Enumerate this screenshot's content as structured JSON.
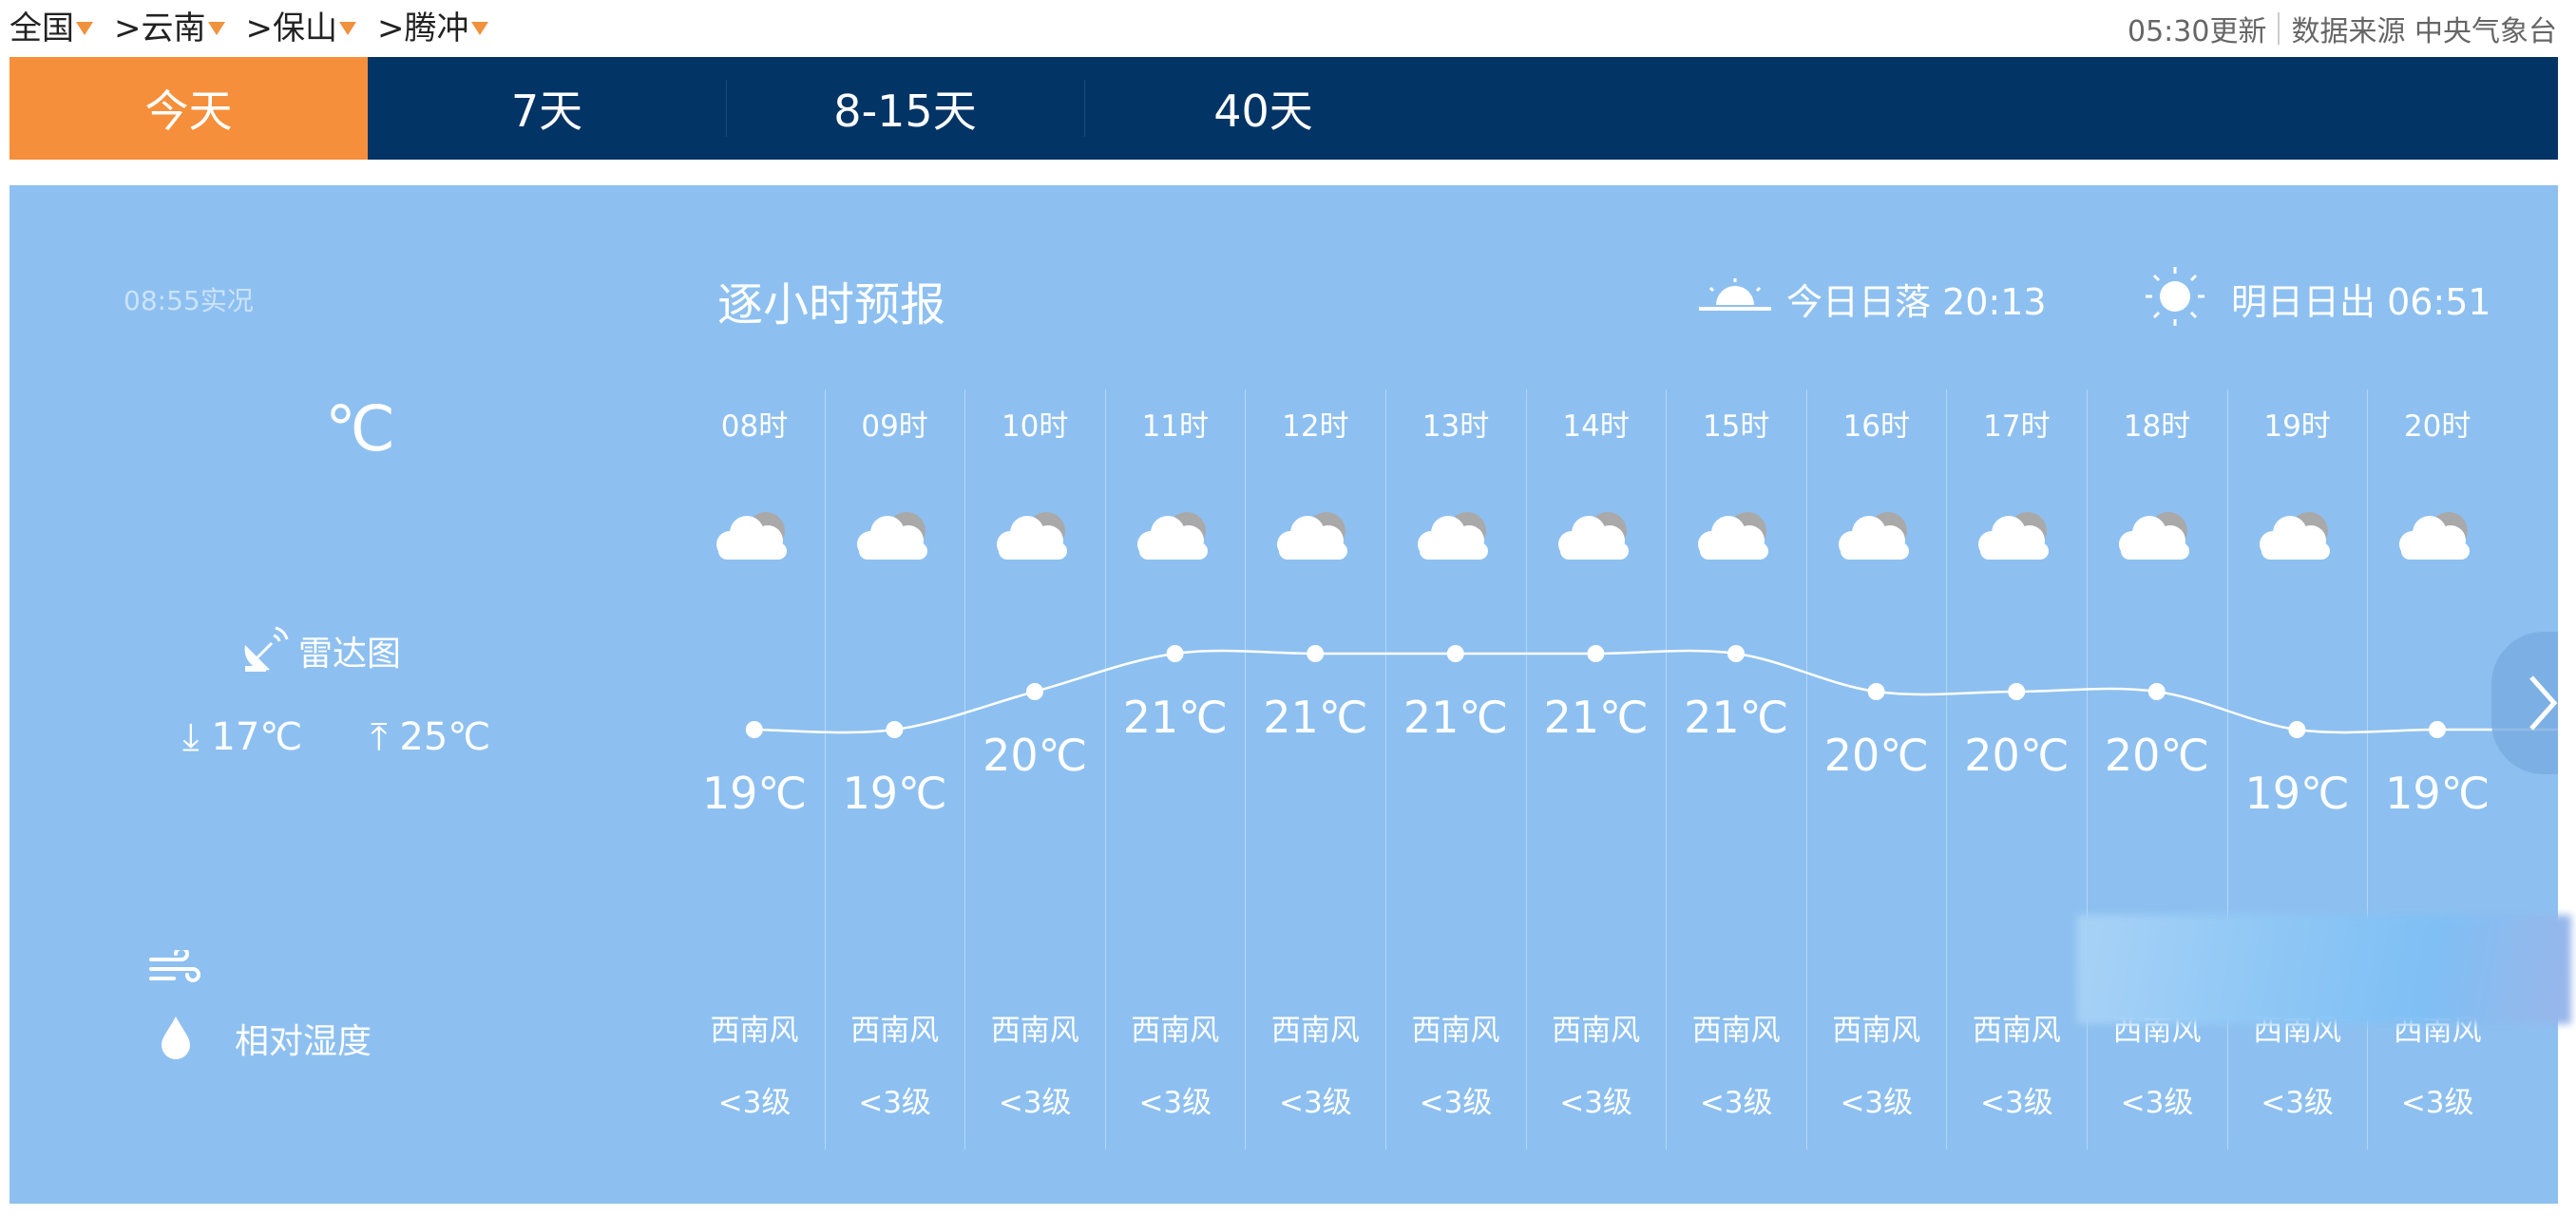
{
  "breadcrumb": [
    "全国",
    ">云南",
    ">保山",
    ">腾冲"
  ],
  "meta": {
    "updated": "05:30更新",
    "source": "数据来源 中央气象台"
  },
  "tabs": [
    {
      "label": "今天",
      "active": true
    },
    {
      "label": "7天"
    },
    {
      "label": "8-15天"
    },
    {
      "label": "40天"
    }
  ],
  "colors": {
    "active_tab": "#f58f3b",
    "tab_bar": "#023466",
    "panel": "#8dc0f0"
  },
  "left": {
    "observed": "08:55实况",
    "unit": "℃",
    "radar": "雷达图",
    "min": "17℃",
    "max": "25℃",
    "humidity": "相对湿度"
  },
  "header": {
    "title": "逐小时预报",
    "sunset": "今日日落 20:13",
    "sunrise": "明日日出 06:51"
  },
  "hours": [
    {
      "time": "08时",
      "icon": "cloudy",
      "temp": 19,
      "temp_label": "19℃",
      "wind_dir": "西南风",
      "wind_level": "<3级"
    },
    {
      "time": "09时",
      "icon": "cloudy",
      "temp": 19,
      "temp_label": "19℃",
      "wind_dir": "西南风",
      "wind_level": "<3级"
    },
    {
      "time": "10时",
      "icon": "cloudy",
      "temp": 20,
      "temp_label": "20℃",
      "wind_dir": "西南风",
      "wind_level": "<3级"
    },
    {
      "time": "11时",
      "icon": "cloudy",
      "temp": 21,
      "temp_label": "21℃",
      "wind_dir": "西南风",
      "wind_level": "<3级"
    },
    {
      "time": "12时",
      "icon": "cloudy",
      "temp": 21,
      "temp_label": "21℃",
      "wind_dir": "西南风",
      "wind_level": "<3级"
    },
    {
      "time": "13时",
      "icon": "cloudy",
      "temp": 21,
      "temp_label": "21℃",
      "wind_dir": "西南风",
      "wind_level": "<3级"
    },
    {
      "time": "14时",
      "icon": "cloudy",
      "temp": 21,
      "temp_label": "21℃",
      "wind_dir": "西南风",
      "wind_level": "<3级"
    },
    {
      "time": "15时",
      "icon": "cloudy",
      "temp": 21,
      "temp_label": "21℃",
      "wind_dir": "西南风",
      "wind_level": "<3级"
    },
    {
      "time": "16时",
      "icon": "cloudy",
      "temp": 20,
      "temp_label": "20℃",
      "wind_dir": "西南风",
      "wind_level": "<3级"
    },
    {
      "time": "17时",
      "icon": "cloudy",
      "temp": 20,
      "temp_label": "20℃",
      "wind_dir": "西南风",
      "wind_level": "<3级"
    },
    {
      "time": "18时",
      "icon": "cloudy",
      "temp": 20,
      "temp_label": "20℃",
      "wind_dir": "西南风",
      "wind_level": "<3级"
    },
    {
      "time": "19时",
      "icon": "cloudy",
      "temp": 19,
      "temp_label": "19℃",
      "wind_dir": "西南风",
      "wind_level": "<3级"
    },
    {
      "time": "20时",
      "icon": "cloudy",
      "temp": 19,
      "temp_label": "19℃",
      "wind_dir": "西南风",
      "wind_level": "<3级"
    }
  ]
}
